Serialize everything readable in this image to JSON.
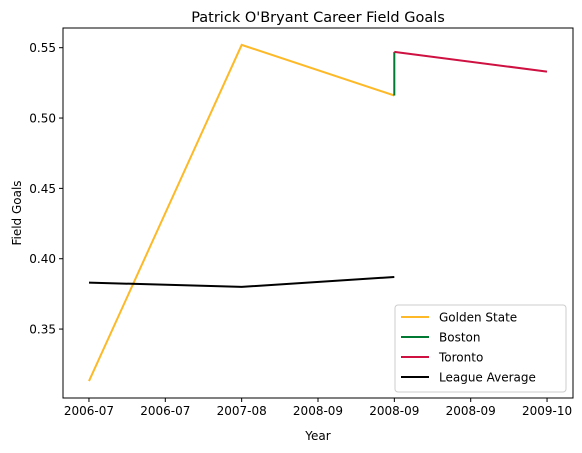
{
  "chart_data": {
    "type": "line",
    "title": "Patrick O'Bryant Career Field Goals",
    "xlabel": "Year",
    "ylabel": "Field Goals",
    "x_ticks": [
      "2006-07",
      "2006-07",
      "2007-08",
      "2008-09",
      "2008-09",
      "2008-09",
      "2009-10"
    ],
    "y_ticks": [
      "0.35",
      "0.40",
      "0.45",
      "0.50",
      "0.55"
    ],
    "xlim": [
      -0.17,
      3.17
    ],
    "ylim": [
      0.301,
      0.564
    ],
    "grid": false,
    "legend_position": "bottom-right",
    "series": [
      {
        "name": "Golden State",
        "color": "#FDB927",
        "x": [
          0,
          1,
          2
        ],
        "y": [
          0.313,
          0.552,
          0.516
        ]
      },
      {
        "name": "Boston",
        "color": "#007A33",
        "x": [
          2,
          2
        ],
        "y": [
          0.516,
          0.547
        ]
      },
      {
        "name": "Toronto",
        "color": "#CE1141",
        "x": [
          2,
          3
        ],
        "y": [
          0.547,
          0.533
        ]
      },
      {
        "name": "League Average",
        "color": "#000000",
        "x": [
          0,
          1,
          2
        ],
        "y": [
          0.383,
          0.38,
          0.387
        ]
      }
    ]
  }
}
